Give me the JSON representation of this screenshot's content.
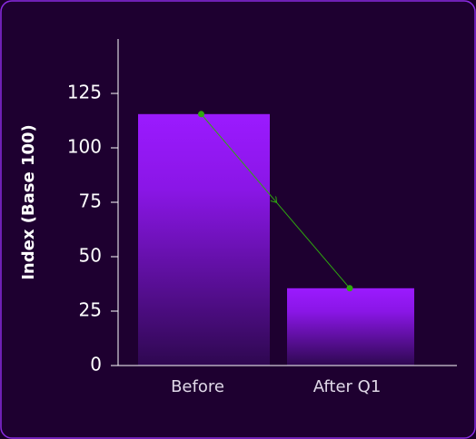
{
  "chart_data": {
    "type": "bar",
    "y_label": "Index (Base 100)",
    "categories": [
      "Before",
      "After Q1"
    ],
    "values": [
      115.5,
      35.5
    ],
    "color": "#9b1aff",
    "line_color": "#2fa80f",
    "ylim": [
      0,
      150
    ],
    "yticks": [
      0,
      25,
      50,
      75,
      100,
      125
    ]
  }
}
